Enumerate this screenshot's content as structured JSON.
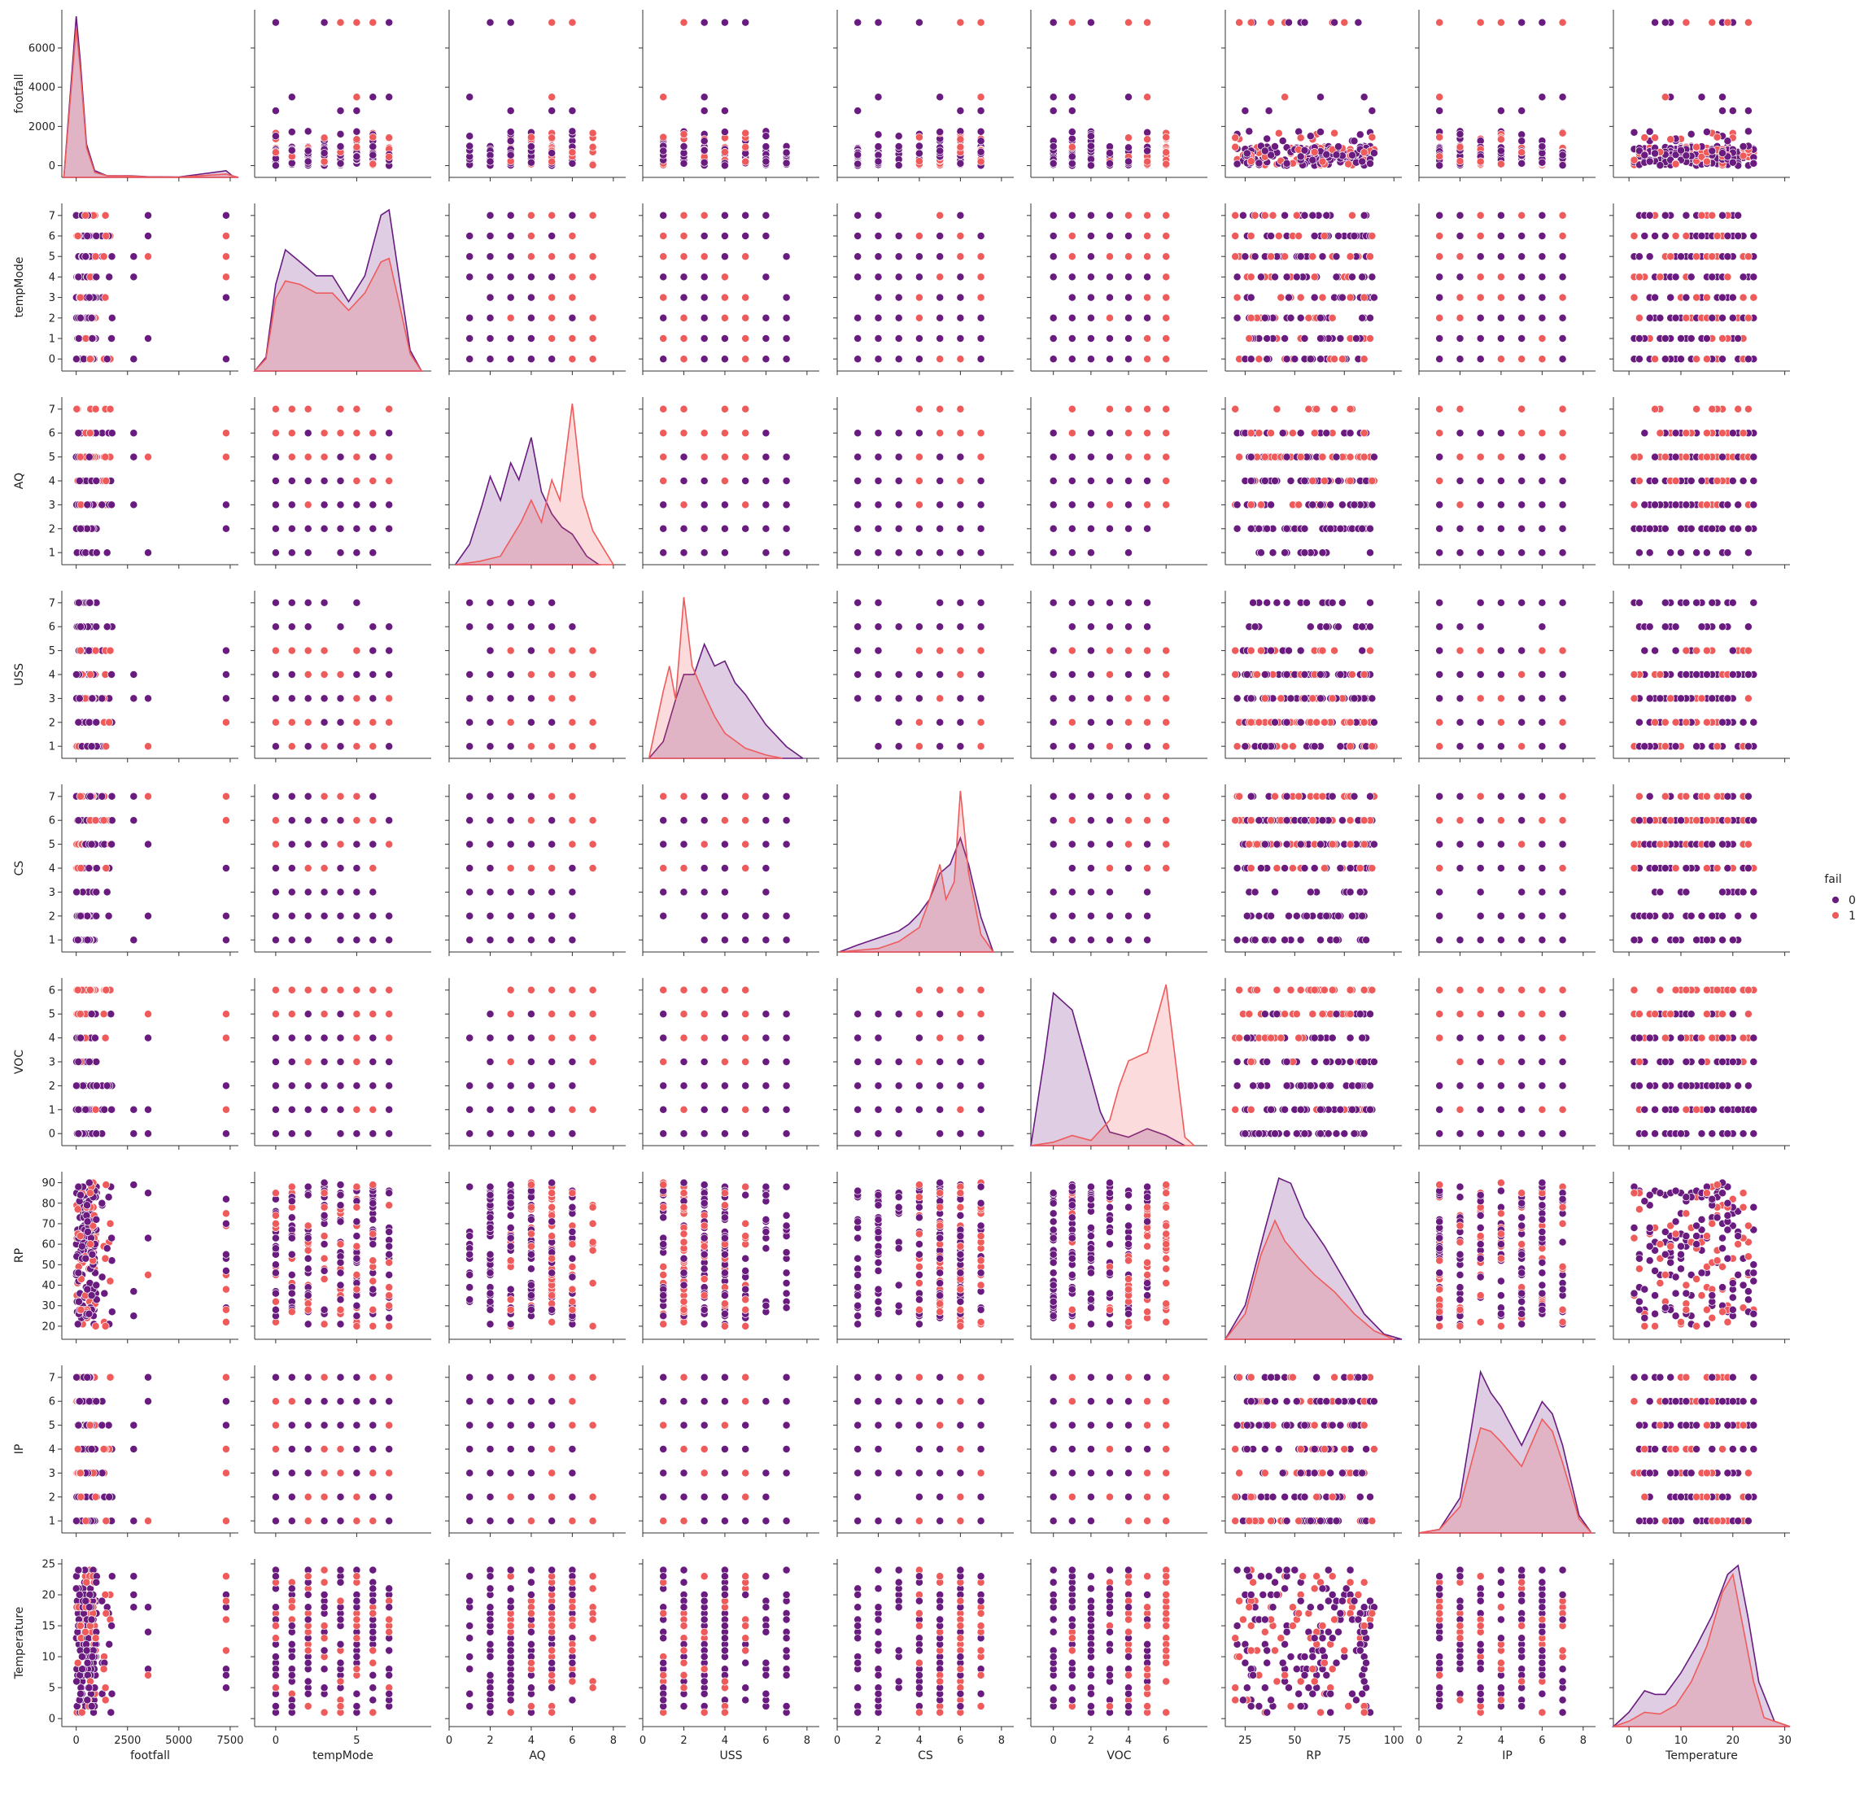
{
  "chart_data": {
    "type": "scatter",
    "subtype": "pairplot",
    "variables": [
      "footfall",
      "tempMode",
      "AQ",
      "USS",
      "CS",
      "VOC",
      "RP",
      "IP",
      "Temperature"
    ],
    "ranges": {
      "footfall": [
        -700,
        7900
      ],
      "tempMode": [
        -1.3,
        9.6
      ],
      "AQ": [
        0,
        8.6
      ],
      "USS": [
        0,
        8.6
      ],
      "CS": [
        0,
        8.6
      ],
      "VOC": [
        -1.2,
        8.2
      ],
      "RP": [
        15,
        104
      ],
      "IP": [
        0,
        8.6
      ],
      "Temperature": [
        -3,
        31
      ]
    },
    "ticks": {
      "footfall": [
        0,
        2500,
        5000,
        7500
      ],
      "tempMode": [
        0,
        5,
        10
      ],
      "AQ": [
        0,
        2,
        4,
        6,
        8
      ],
      "USS": [
        0,
        2,
        4,
        6,
        8
      ],
      "CS": [
        0,
        2,
        4,
        6,
        8
      ],
      "VOC": [
        0,
        2,
        4,
        6
      ],
      "RP": [
        25,
        50,
        75,
        100
      ],
      "IP": [
        0,
        2,
        4,
        6,
        8
      ],
      "Temperature": [
        0,
        10,
        20,
        30
      ]
    },
    "ytick_overrides": {
      "footfall": [
        0,
        2000,
        4000,
        6000
      ],
      "tempMode": [
        0,
        1,
        2,
        3,
        4,
        5,
        6,
        7
      ],
      "AQ": [
        1,
        2,
        3,
        4,
        5,
        6,
        7
      ],
      "USS": [
        1,
        2,
        3,
        4,
        5,
        6,
        7
      ],
      "CS": [
        1,
        2,
        3,
        4,
        5,
        6,
        7
      ],
      "VOC": [
        0,
        1,
        2,
        3,
        4,
        5,
        6
      ],
      "RP": [
        20,
        30,
        40,
        50,
        60,
        70,
        80,
        90
      ],
      "IP": [
        1,
        2,
        3,
        4,
        5,
        6,
        7
      ],
      "Temperature": [
        0,
        5,
        10,
        15,
        20,
        25
      ]
    },
    "y_extent": {
      "footfall": [
        -350,
        7700
      ],
      "tempMode": [
        -0.35,
        7.35
      ],
      "AQ": [
        0.7,
        7.3
      ],
      "USS": [
        0.7,
        7.3
      ],
      "CS": [
        0.7,
        7.3
      ],
      "VOC": [
        -0.3,
        6.3
      ],
      "RP": [
        16,
        93
      ],
      "IP": [
        0.7,
        7.3
      ],
      "Temperature": [
        -0.5,
        25
      ]
    },
    "hue": "fail",
    "legend": {
      "title": "fail",
      "labels": [
        "0",
        "1"
      ],
      "position": "right"
    },
    "colors": {
      "0": "#6a1b7f",
      "1": "#ef5b5b"
    },
    "diagonal": "kde",
    "kde": {
      "footfall": {
        "0": [
          [
            -600,
            0
          ],
          [
            0,
            0.97
          ],
          [
            200,
            0.7
          ],
          [
            500,
            0.2
          ],
          [
            900,
            0.04
          ],
          [
            1500,
            0.01
          ],
          [
            2600,
            0.01
          ],
          [
            3500,
            0.004
          ],
          [
            5000,
            0.002
          ],
          [
            7300,
            0.04
          ],
          [
            7600,
            0.01
          ],
          [
            7900,
            0
          ]
        ],
        "1": [
          [
            -600,
            0
          ],
          [
            0,
            0.9
          ],
          [
            200,
            0.65
          ],
          [
            500,
            0.18
          ],
          [
            900,
            0.03
          ],
          [
            1500,
            0.01
          ],
          [
            2600,
            0.008
          ],
          [
            3500,
            0.003
          ],
          [
            5000,
            0.001
          ],
          [
            7300,
            0.02
          ],
          [
            7900,
            0
          ]
        ]
      },
      "tempMode": {
        "0": [
          [
            -1.3,
            0
          ],
          [
            -0.6,
            0.08
          ],
          [
            0,
            0.5
          ],
          [
            0.6,
            0.7
          ],
          [
            1.5,
            0.63
          ],
          [
            2.5,
            0.55
          ],
          [
            3.5,
            0.55
          ],
          [
            4.5,
            0.4
          ],
          [
            5.5,
            0.55
          ],
          [
            6.5,
            0.9
          ],
          [
            7,
            0.93
          ],
          [
            7.6,
            0.55
          ],
          [
            8.3,
            0.12
          ],
          [
            9,
            0
          ]
        ],
        "1": [
          [
            -1.3,
            0
          ],
          [
            -0.6,
            0.07
          ],
          [
            0,
            0.42
          ],
          [
            0.6,
            0.52
          ],
          [
            1.5,
            0.5
          ],
          [
            2.5,
            0.45
          ],
          [
            3.5,
            0.45
          ],
          [
            4.5,
            0.35
          ],
          [
            5.5,
            0.45
          ],
          [
            6.5,
            0.63
          ],
          [
            7,
            0.65
          ],
          [
            7.6,
            0.4
          ],
          [
            8.3,
            0.1
          ],
          [
            9,
            0
          ]
        ]
      },
      "AQ": {
        "0": [
          [
            0.3,
            0
          ],
          [
            1,
            0.12
          ],
          [
            1.6,
            0.35
          ],
          [
            2,
            0.52
          ],
          [
            2.5,
            0.38
          ],
          [
            3,
            0.6
          ],
          [
            3.4,
            0.5
          ],
          [
            4,
            0.75
          ],
          [
            4.5,
            0.43
          ],
          [
            5,
            0.3
          ],
          [
            5.5,
            0.22
          ],
          [
            6,
            0.18
          ],
          [
            6.7,
            0.05
          ],
          [
            7.3,
            0
          ]
        ],
        "1": [
          [
            0.3,
            0
          ],
          [
            1.5,
            0.02
          ],
          [
            2.5,
            0.05
          ],
          [
            3.5,
            0.25
          ],
          [
            4,
            0.38
          ],
          [
            4.5,
            0.25
          ],
          [
            5,
            0.5
          ],
          [
            5.4,
            0.38
          ],
          [
            6,
            0.95
          ],
          [
            6.5,
            0.4
          ],
          [
            7,
            0.2
          ],
          [
            7.5,
            0.1
          ],
          [
            8,
            0
          ]
        ]
      },
      "USS": {
        "0": [
          [
            0.3,
            0
          ],
          [
            1,
            0.1
          ],
          [
            1.6,
            0.35
          ],
          [
            2,
            0.5
          ],
          [
            2.5,
            0.5
          ],
          [
            3,
            0.68
          ],
          [
            3.5,
            0.55
          ],
          [
            4,
            0.58
          ],
          [
            4.5,
            0.45
          ],
          [
            5,
            0.38
          ],
          [
            6,
            0.2
          ],
          [
            7,
            0.07
          ],
          [
            7.8,
            0
          ]
        ],
        "1": [
          [
            0.3,
            0
          ],
          [
            1,
            0.4
          ],
          [
            1.3,
            0.55
          ],
          [
            1.6,
            0.35
          ],
          [
            2,
            0.96
          ],
          [
            2.4,
            0.55
          ],
          [
            3,
            0.38
          ],
          [
            3.5,
            0.25
          ],
          [
            4,
            0.15
          ],
          [
            5,
            0.06
          ],
          [
            6,
            0.02
          ],
          [
            6.8,
            0
          ]
        ]
      },
      "CS": {
        "0": [
          [
            0.1,
            0
          ],
          [
            1,
            0.04
          ],
          [
            2,
            0.08
          ],
          [
            3,
            0.12
          ],
          [
            3.5,
            0.16
          ],
          [
            4,
            0.22
          ],
          [
            4.5,
            0.3
          ],
          [
            5,
            0.45
          ],
          [
            5.5,
            0.5
          ],
          [
            6,
            0.65
          ],
          [
            6.4,
            0.5
          ],
          [
            7,
            0.2
          ],
          [
            7.6,
            0
          ]
        ],
        "1": [
          [
            0.1,
            0
          ],
          [
            2,
            0.02
          ],
          [
            3,
            0.06
          ],
          [
            4,
            0.14
          ],
          [
            4.5,
            0.3
          ],
          [
            5,
            0.5
          ],
          [
            5.3,
            0.3
          ],
          [
            5.7,
            0.4
          ],
          [
            6,
            0.92
          ],
          [
            6.4,
            0.45
          ],
          [
            7,
            0.1
          ],
          [
            7.6,
            0
          ]
        ]
      },
      "VOC": {
        "0": [
          [
            -1.2,
            0
          ],
          [
            -0.5,
            0.5
          ],
          [
            0,
            0.9
          ],
          [
            0.5,
            0.85
          ],
          [
            1,
            0.8
          ],
          [
            1.5,
            0.6
          ],
          [
            2,
            0.4
          ],
          [
            2.5,
            0.2
          ],
          [
            3,
            0.08
          ],
          [
            4,
            0.05
          ],
          [
            5,
            0.1
          ],
          [
            6,
            0.06
          ],
          [
            7,
            0
          ]
        ],
        "1": [
          [
            -1.2,
            0
          ],
          [
            0,
            0.02
          ],
          [
            1,
            0.06
          ],
          [
            2,
            0.03
          ],
          [
            3,
            0.15
          ],
          [
            3.5,
            0.35
          ],
          [
            4,
            0.5
          ],
          [
            5,
            0.55
          ],
          [
            5.5,
            0.75
          ],
          [
            6,
            0.95
          ],
          [
            6.5,
            0.5
          ],
          [
            7,
            0.05
          ],
          [
            7.5,
            0
          ]
        ]
      },
      "RP": {
        "0": [
          [
            15,
            0
          ],
          [
            25,
            0.2
          ],
          [
            35,
            0.65
          ],
          [
            42,
            0.95
          ],
          [
            48,
            0.92
          ],
          [
            55,
            0.72
          ],
          [
            65,
            0.55
          ],
          [
            75,
            0.35
          ],
          [
            85,
            0.15
          ],
          [
            95,
            0.03
          ],
          [
            104,
            0
          ]
        ],
        "1": [
          [
            15,
            0
          ],
          [
            25,
            0.15
          ],
          [
            33,
            0.5
          ],
          [
            40,
            0.7
          ],
          [
            45,
            0.58
          ],
          [
            52,
            0.48
          ],
          [
            60,
            0.38
          ],
          [
            70,
            0.28
          ],
          [
            80,
            0.15
          ],
          [
            90,
            0.05
          ],
          [
            100,
            0
          ]
        ]
      },
      "IP": {
        "0": [
          [
            0,
            0
          ],
          [
            1,
            0.02
          ],
          [
            2,
            0.2
          ],
          [
            3,
            0.92
          ],
          [
            3.5,
            0.8
          ],
          [
            4,
            0.72
          ],
          [
            5,
            0.5
          ],
          [
            6,
            0.75
          ],
          [
            6.5,
            0.68
          ],
          [
            7,
            0.5
          ],
          [
            7.8,
            0.1
          ],
          [
            8.4,
            0
          ]
        ],
        "1": [
          [
            0,
            0
          ],
          [
            1,
            0.02
          ],
          [
            2,
            0.15
          ],
          [
            3,
            0.6
          ],
          [
            3.5,
            0.58
          ],
          [
            4,
            0.52
          ],
          [
            5,
            0.38
          ],
          [
            6,
            0.65
          ],
          [
            6.5,
            0.58
          ],
          [
            7,
            0.4
          ],
          [
            7.8,
            0.08
          ],
          [
            8.4,
            0
          ]
        ]
      },
      "Temperature": {
        "0": [
          [
            -3,
            0
          ],
          [
            0,
            0.08
          ],
          [
            3,
            0.2
          ],
          [
            5,
            0.18
          ],
          [
            7,
            0.18
          ],
          [
            10,
            0.3
          ],
          [
            13,
            0.45
          ],
          [
            16,
            0.62
          ],
          [
            19,
            0.85
          ],
          [
            21,
            0.9
          ],
          [
            23,
            0.6
          ],
          [
            25,
            0.25
          ],
          [
            28,
            0.03
          ],
          [
            31,
            0
          ]
        ],
        "1": [
          [
            -3,
            0
          ],
          [
            0,
            0.03
          ],
          [
            3,
            0.08
          ],
          [
            6,
            0.07
          ],
          [
            9,
            0.12
          ],
          [
            12,
            0.25
          ],
          [
            15,
            0.45
          ],
          [
            18,
            0.75
          ],
          [
            20,
            0.85
          ],
          [
            22,
            0.55
          ],
          [
            24,
            0.25
          ],
          [
            26,
            0.05
          ],
          [
            31,
            0
          ]
        ]
      }
    },
    "note_points": "scatter points sampled to reflect the visible clusters"
  }
}
